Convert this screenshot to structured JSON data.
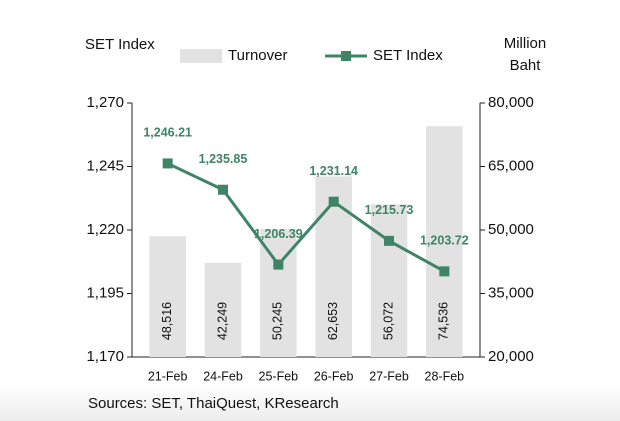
{
  "chart_data": {
    "type": "combo",
    "y_label": "SET Index",
    "y2_label": "Million Baht",
    "categories": [
      "21-Feb",
      "24-Feb",
      "25-Feb",
      "26-Feb",
      "27-Feb",
      "28-Feb"
    ],
    "series": [
      {
        "name": "Turnover",
        "type": "bar",
        "axis": "y2",
        "color": "#e2e2e2",
        "values": [
          48516,
          42249,
          50245,
          62653,
          56072,
          74536
        ],
        "value_labels": [
          "48,516",
          "42,249",
          "50,245",
          "62,653",
          "56,072",
          "74,536"
        ]
      },
      {
        "name": "SET Index",
        "type": "line",
        "color": "#3f8466",
        "values": [
          1246.21,
          1235.85,
          1206.39,
          1231.14,
          1215.73,
          1203.72
        ],
        "value_labels": [
          "1,246.21",
          "1,235.85",
          "1,206.39",
          "1,231.14",
          "1,215.73",
          "1,203.72"
        ]
      }
    ],
    "ylim": [
      1170,
      1270
    ],
    "yticks": [
      {
        "value": 1170,
        "label": "1,170"
      },
      {
        "value": 1195,
        "label": "1,195"
      },
      {
        "value": 1220,
        "label": "1,220"
      },
      {
        "value": 1245,
        "label": "1,245"
      },
      {
        "value": 1270,
        "label": "1,270"
      }
    ],
    "y2lim": [
      20000,
      80000
    ],
    "y2ticks": [
      {
        "value": 20000,
        "label": "20,000"
      },
      {
        "value": 35000,
        "label": "35,000"
      },
      {
        "value": 50000,
        "label": "50,000"
      },
      {
        "value": 65000,
        "label": "65,000"
      },
      {
        "value": 80000,
        "label": "80,000"
      }
    ],
    "grid": false,
    "legend": "top",
    "source": "Sources: SET, ThaiQuest, KResearch"
  }
}
